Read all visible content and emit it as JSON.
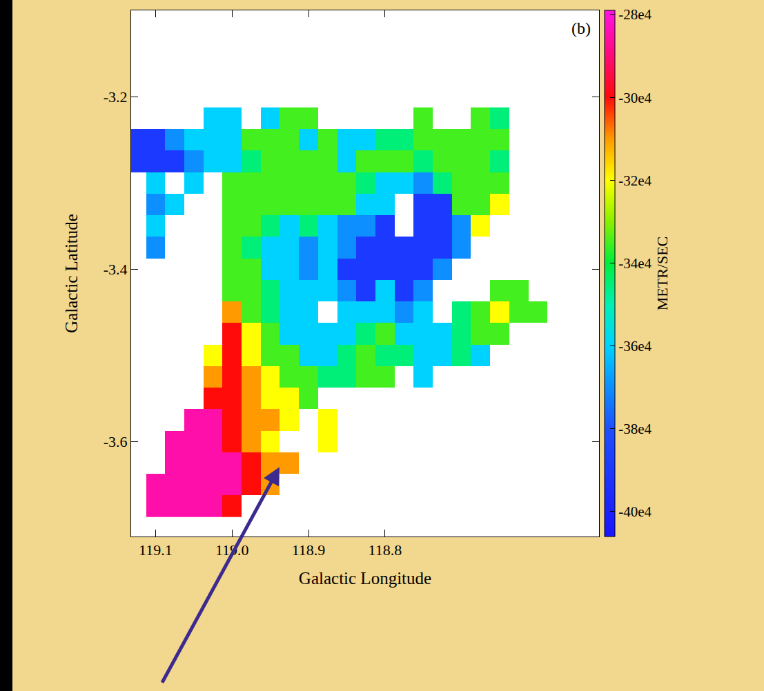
{
  "chart_data": {
    "type": "heatmap",
    "x_label": "Galactic Longitude",
    "y_label": "Galactic Latitude",
    "panel_label": "(b)",
    "grid": false,
    "xlim": [
      119.132,
      118.52
    ],
    "ylim": [
      -3.71,
      -3.1
    ],
    "xticks": [
      119.1,
      {
        "value": 119,
        "label": "119.0"
      },
      118.9,
      118.8
    ],
    "yticks": [
      -3.2,
      -3.4,
      -3.6
    ],
    "colorbar": {
      "title": "METR/SEC",
      "range": [
        -406000,
        -279000
      ],
      "ticks": [
        {
          "value": -280000,
          "label": "-28e4"
        },
        {
          "value": -300000,
          "label": "-30e4"
        },
        {
          "value": -320000,
          "label": "-32e4"
        },
        {
          "value": -340000,
          "label": "-34e4"
        },
        {
          "value": -360000,
          "label": "-36e4"
        },
        {
          "value": -380000,
          "label": "-38e4"
        },
        {
          "value": -400000,
          "label": "-40e4"
        }
      ]
    },
    "x": [
      119.125,
      119.1,
      119.075,
      119.05,
      119.025,
      119.0,
      118.975,
      118.95,
      118.925,
      118.9,
      118.875,
      118.85,
      118.825,
      118.8,
      118.775,
      118.75,
      118.725,
      118.7,
      118.675,
      118.65,
      118.625,
      118.6,
      118.575
    ],
    "y": [
      -3.225,
      -3.25,
      -3.275,
      -3.3,
      -3.325,
      -3.35,
      -3.375,
      -3.4,
      -3.425,
      -3.45,
      -3.475,
      -3.5,
      -3.525,
      -3.55,
      -3.575,
      -3.6,
      -3.625,
      -3.65,
      -3.675
    ],
    "cells": [
      [
        null,
        null,
        null,
        null,
        -360000,
        -360000,
        null,
        -360000,
        -335000,
        -335000,
        null,
        null,
        null,
        null,
        null,
        -335000,
        null,
        null,
        -335000,
        -345000,
        null,
        null,
        null
      ],
      [
        -390000,
        -390000,
        -370000,
        -360000,
        -360000,
        -360000,
        -335000,
        -335000,
        -335000,
        -360000,
        -335000,
        -360000,
        -360000,
        -345000,
        -345000,
        -335000,
        -335000,
        -335000,
        -335000,
        -335000,
        null,
        null,
        null
      ],
      [
        -390000,
        -390000,
        -390000,
        -370000,
        -360000,
        -360000,
        -345000,
        -335000,
        -335000,
        -335000,
        -335000,
        -360000,
        -335000,
        -335000,
        -335000,
        -345000,
        -335000,
        -335000,
        -335000,
        -345000,
        null,
        null,
        null
      ],
      [
        null,
        -360000,
        null,
        -360000,
        null,
        -335000,
        -335000,
        -335000,
        -335000,
        -335000,
        -335000,
        -335000,
        -345000,
        -360000,
        -360000,
        -370000,
        -345000,
        -335000,
        -335000,
        -335000,
        null,
        null,
        null
      ],
      [
        null,
        -370000,
        -360000,
        null,
        null,
        -335000,
        -335000,
        -335000,
        -335000,
        -335000,
        -335000,
        -335000,
        -360000,
        -360000,
        null,
        -390000,
        -390000,
        -335000,
        -335000,
        -320000,
        null,
        null,
        null
      ],
      [
        null,
        -360000,
        null,
        null,
        null,
        -335000,
        -335000,
        -345000,
        -360000,
        -345000,
        -360000,
        -370000,
        -370000,
        -390000,
        null,
        -390000,
        -390000,
        -370000,
        -320000,
        null,
        null,
        null,
        null
      ],
      [
        null,
        -370000,
        null,
        null,
        null,
        -335000,
        -345000,
        -360000,
        -360000,
        -370000,
        -360000,
        -370000,
        -390000,
        -390000,
        -390000,
        -390000,
        -390000,
        -370000,
        null,
        null,
        null,
        null,
        null
      ],
      [
        null,
        null,
        null,
        null,
        null,
        -335000,
        -335000,
        -360000,
        -360000,
        -370000,
        -360000,
        -390000,
        -390000,
        -390000,
        -390000,
        -390000,
        -370000,
        null,
        null,
        null,
        null,
        null,
        null
      ],
      [
        null,
        null,
        null,
        null,
        null,
        -335000,
        -335000,
        -345000,
        -360000,
        -360000,
        -360000,
        -370000,
        -390000,
        -360000,
        -390000,
        -370000,
        null,
        null,
        null,
        -335000,
        -335000,
        null,
        null
      ],
      [
        null,
        null,
        null,
        null,
        null,
        -310000,
        -335000,
        -345000,
        -360000,
        -360000,
        null,
        -360000,
        -360000,
        -360000,
        -370000,
        -360000,
        null,
        -345000,
        -335000,
        -320000,
        -335000,
        -335000,
        null
      ],
      [
        null,
        null,
        null,
        null,
        null,
        -300000,
        -320000,
        -335000,
        -360000,
        -360000,
        -360000,
        -360000,
        -345000,
        -335000,
        -360000,
        -360000,
        -360000,
        -345000,
        -335000,
        -335000,
        null,
        null,
        null
      ],
      [
        null,
        null,
        null,
        null,
        -320000,
        -300000,
        -320000,
        -335000,
        -335000,
        -360000,
        -360000,
        -345000,
        -335000,
        -345000,
        -345000,
        -360000,
        -360000,
        -345000,
        -360000,
        null,
        null,
        null,
        null
      ],
      [
        null,
        null,
        null,
        null,
        -310000,
        -300000,
        -310000,
        -320000,
        -335000,
        -335000,
        -345000,
        -345000,
        -335000,
        -335000,
        null,
        -360000,
        null,
        null,
        null,
        null,
        null,
        null,
        null
      ],
      [
        null,
        null,
        null,
        null,
        -300000,
        -300000,
        -310000,
        -320000,
        -320000,
        -335000,
        null,
        null,
        null,
        null,
        null,
        null,
        null,
        null,
        null,
        null,
        null,
        null,
        null
      ],
      [
        null,
        null,
        null,
        -285000,
        -285000,
        -300000,
        -310000,
        -310000,
        -320000,
        null,
        -320000,
        null,
        null,
        null,
        null,
        null,
        null,
        null,
        null,
        null,
        null,
        null,
        null
      ],
      [
        null,
        null,
        -285000,
        -285000,
        -285000,
        -300000,
        -310000,
        -320000,
        null,
        null,
        -320000,
        null,
        null,
        null,
        null,
        null,
        null,
        null,
        null,
        null,
        null,
        null,
        null
      ],
      [
        null,
        null,
        -285000,
        -285000,
        -285000,
        -285000,
        -300000,
        -310000,
        -310000,
        null,
        null,
        null,
        null,
        null,
        null,
        null,
        null,
        null,
        null,
        null,
        null,
        null,
        null
      ],
      [
        null,
        -285000,
        -285000,
        -285000,
        -285000,
        -285000,
        -300000,
        -310000,
        null,
        null,
        null,
        null,
        null,
        null,
        null,
        null,
        null,
        null,
        null,
        null,
        null,
        null,
        null
      ],
      [
        null,
        -285000,
        -285000,
        -285000,
        -285000,
        -300000,
        null,
        null,
        null,
        null,
        null,
        null,
        null,
        null,
        null,
        null,
        null,
        null,
        null,
        null,
        null,
        null,
        null
      ]
    ]
  }
}
